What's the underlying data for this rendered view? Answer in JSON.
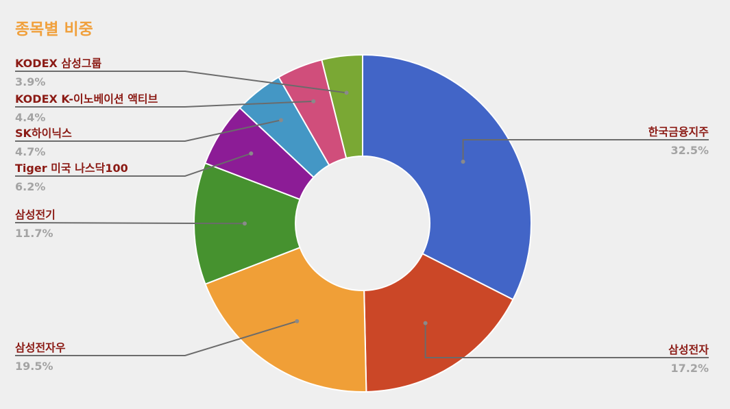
{
  "chart_data": {
    "type": "pie",
    "donut": true,
    "title": "종목별 비중",
    "slices": [
      {
        "label": "한국금융지주",
        "percent_label": "32.5%",
        "value": 32.5,
        "color": "#4265c7",
        "side": "right"
      },
      {
        "label": "삼성전자",
        "percent_label": "17.2%",
        "value": 17.2,
        "color": "#cb4727",
        "side": "right"
      },
      {
        "label": "삼성전자우",
        "percent_label": "19.5%",
        "value": 19.5,
        "color": "#f09f37",
        "side": "left"
      },
      {
        "label": "삼성전기",
        "percent_label": "11.7%",
        "value": 11.7,
        "color": "#46922f",
        "side": "left"
      },
      {
        "label": "Tiger 미국 나스닥100",
        "percent_label": "6.2%",
        "value": 6.2,
        "color": "#8c1c96",
        "side": "left"
      },
      {
        "label": "SK하이닉스",
        "percent_label": "4.7%",
        "value": 4.7,
        "color": "#4497c5",
        "side": "left"
      },
      {
        "label": "KODEX K-이노베이션 액티브",
        "percent_label": "4.4%",
        "value": 4.4,
        "color": "#d04e7b",
        "side": "left"
      },
      {
        "label": "KODEX 삼성그룹",
        "percent_label": "3.9%",
        "value": 3.9,
        "color": "#7aa834",
        "side": "left"
      }
    ],
    "legend": "none",
    "label_position": "outside with leader lines"
  },
  "colors": {
    "background": "#efefef",
    "title": "#f0a03c",
    "label": "#8b1a14",
    "percent": "#a3a3a3",
    "leader": "#6b6b6b"
  }
}
